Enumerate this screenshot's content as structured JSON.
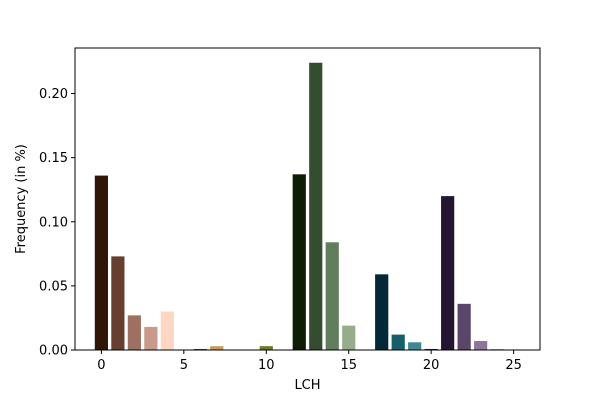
{
  "chart_data": {
    "type": "bar",
    "title": "",
    "xlabel": "LCH",
    "ylabel": "Frequency (in %)",
    "xlim": [
      -1.6,
      26.6
    ],
    "ylim": [
      0,
      0.2355
    ],
    "xticks": [
      0,
      5,
      10,
      15,
      20,
      25
    ],
    "xtick_labels": [
      "0",
      "5",
      "10",
      "15",
      "20",
      "25"
    ],
    "yticks": [
      0.0,
      0.05,
      0.1,
      0.15,
      0.2
    ],
    "ytick_labels": [
      "0.00",
      "0.05",
      "0.10",
      "0.15",
      "0.20"
    ],
    "grid": false,
    "x": [
      0,
      1,
      2,
      3,
      4,
      5,
      6,
      7,
      8,
      9,
      10,
      11,
      12,
      13,
      14,
      15,
      16,
      17,
      18,
      19,
      20,
      21,
      22,
      23,
      24,
      25
    ],
    "values": [
      0.136,
      0.073,
      0.027,
      0.018,
      0.03,
      0.0,
      0.0008,
      0.003,
      0.0,
      0.0,
      0.003,
      0.0,
      0.137,
      0.224,
      0.084,
      0.019,
      0.0,
      0.059,
      0.012,
      0.006,
      0.0008,
      0.12,
      0.036,
      0.007,
      0.0008,
      0.0004
    ],
    "colors": [
      "#2f1607",
      "#673f31",
      "#9d7062",
      "#c99a8b",
      "#ffd5c3",
      "#ffffff",
      "#7a2a4a",
      "#c99a5a",
      "#ffffff",
      "#ffffff",
      "#6b7a2a",
      "#ffffff",
      "#0e1e05",
      "#344d2f",
      "#617d5c",
      "#96ad8b",
      "#ffffff",
      "#032838",
      "#155f6d",
      "#3e8794",
      "#0f2a2a",
      "#241632",
      "#5a4668",
      "#8f7599",
      "#c4aacb",
      "#e8d8ef"
    ]
  }
}
